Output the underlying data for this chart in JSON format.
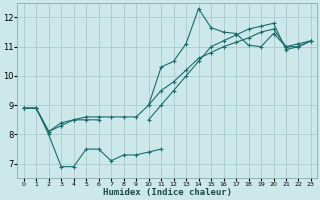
{
  "xlabel": "Humidex (Indice chaleur)",
  "bg_color": "#cce8ea",
  "grid_color": "#aacccc",
  "line_color": "#1a6b6b",
  "xlim": [
    -0.5,
    23.5
  ],
  "ylim": [
    6.5,
    12.5
  ],
  "yticks": [
    7,
    8,
    9,
    10,
    11,
    12
  ],
  "xticks": [
    0,
    1,
    2,
    3,
    4,
    5,
    6,
    7,
    8,
    9,
    10,
    11,
    12,
    13,
    14,
    15,
    16,
    17,
    18,
    19,
    20,
    21,
    22,
    23
  ],
  "lines": [
    {
      "x": [
        0,
        1,
        2,
        3,
        4,
        5,
        6,
        7,
        8,
        9,
        10,
        11
      ],
      "y": [
        8.9,
        8.9,
        8.0,
        6.9,
        6.9,
        7.5,
        7.5,
        7.1,
        7.3,
        7.3,
        7.4,
        7.5
      ]
    },
    {
      "x": [
        0,
        1,
        2,
        3,
        4,
        5,
        6
      ],
      "y": [
        8.9,
        8.9,
        8.1,
        8.3,
        8.5,
        8.5,
        8.5
      ]
    },
    {
      "x": [
        0,
        1,
        2,
        3,
        4,
        5,
        6,
        7,
        8,
        9,
        10,
        11,
        12,
        13,
        14,
        15,
        16,
        17,
        18,
        19,
        20,
        21,
        22,
        23
      ],
      "y": [
        8.9,
        8.9,
        8.1,
        8.4,
        8.5,
        8.6,
        8.6,
        8.6,
        8.6,
        8.6,
        9.0,
        10.3,
        10.5,
        11.1,
        12.3,
        11.65,
        11.5,
        11.45,
        11.05,
        11.0,
        11.45,
        11.0,
        11.1,
        11.2
      ]
    },
    {
      "x": [
        10,
        11,
        12,
        13,
        14,
        15,
        16,
        17,
        18,
        19,
        20,
        21,
        22,
        23
      ],
      "y": [
        9.0,
        9.5,
        9.8,
        10.2,
        10.6,
        10.8,
        11.0,
        11.15,
        11.3,
        11.5,
        11.6,
        11.0,
        11.0,
        11.2
      ]
    },
    {
      "x": [
        10,
        11,
        12,
        13,
        14,
        15,
        16,
        17,
        18,
        19,
        20,
        21,
        22,
        23
      ],
      "y": [
        8.5,
        9.0,
        9.5,
        10.0,
        10.5,
        11.0,
        11.2,
        11.4,
        11.6,
        11.7,
        11.8,
        10.9,
        11.0,
        11.2
      ]
    }
  ]
}
